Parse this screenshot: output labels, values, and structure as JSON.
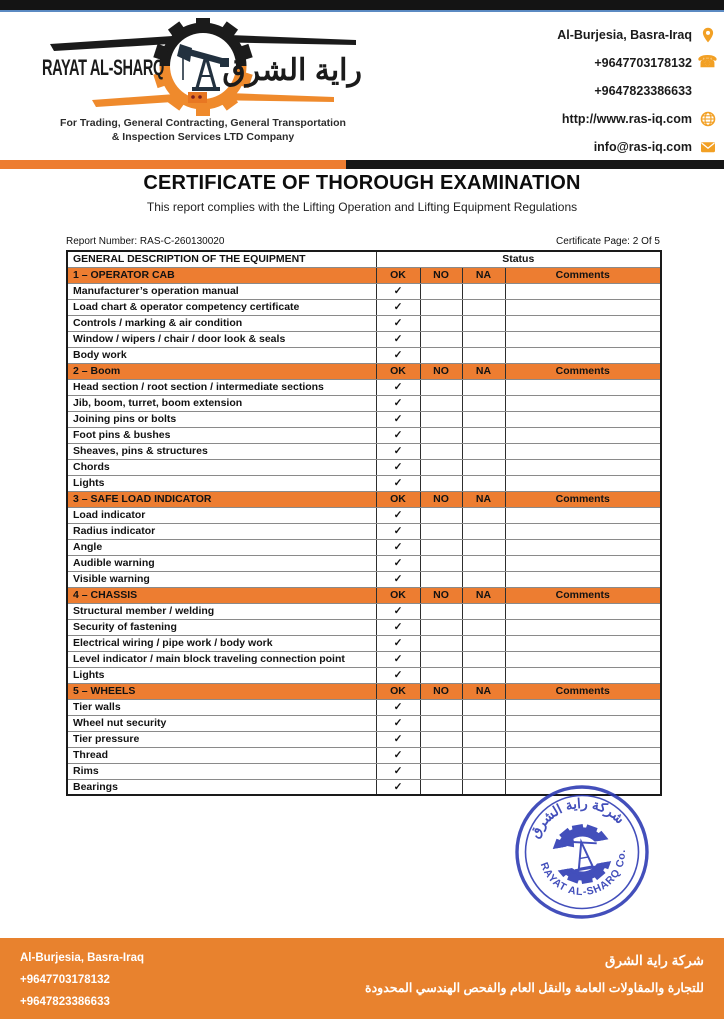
{
  "header": {
    "company_name_en": "RAYAT AL-SHARQ",
    "company_name_ar": "راية الشرق",
    "tagline_line1": "For Trading, General Contracting, General Transportation",
    "tagline_line2": "& Inspection Services LTD Company",
    "contacts": [
      {
        "text": "Al-Burjesia, Basra-Iraq",
        "icon": "location-pin-icon"
      },
      {
        "text": "+9647703178132",
        "icon": "phone-icon"
      },
      {
        "text": "+9647823386633",
        "icon": "none"
      },
      {
        "text": "http://www.ras-iq.com",
        "icon": "globe-icon"
      },
      {
        "text": "info@ras-iq.com",
        "icon": "envelope-icon"
      }
    ]
  },
  "title": "CERTIFICATE OF THOROUGH EXAMINATION",
  "subtitle": "This report complies with the Lifting Operation and Lifting Equipment Regulations",
  "meta": {
    "report_number_label": "Report Number:",
    "report_number": "RAS-C-260130020",
    "certificate_page_label": "Certificate Page:",
    "certificate_page": "2 Of 5"
  },
  "table": {
    "description_header": "GENERAL DESCRIPTION OF THE EQUIPMENT",
    "status_header": "Status",
    "status_columns": [
      "OK",
      "NO",
      "NA",
      "Comments"
    ],
    "check_glyph": "✓",
    "sections": [
      {
        "label": "1 – OPERATOR CAB",
        "items": [
          {
            "text": "Manufacturer’s operation manual",
            "ok": true
          },
          {
            "text": "Load chart & operator competency certificate",
            "ok": true
          },
          {
            "text": "Controls / marking & air condition",
            "ok": true
          },
          {
            "text": "Window / wipers / chair / door look & seals",
            "ok": true
          },
          {
            "text": "Body work",
            "ok": true
          }
        ]
      },
      {
        "label": "2 – Boom",
        "items": [
          {
            "text": "Head section / root section / intermediate sections",
            "ok": true
          },
          {
            "text": "Jib, boom, turret, boom extension",
            "ok": true
          },
          {
            "text": "Joining pins or bolts",
            "ok": true
          },
          {
            "text": "Foot pins & bushes",
            "ok": true
          },
          {
            "text": "Sheaves, pins & structures",
            "ok": true
          },
          {
            "text": "Chords",
            "ok": true
          },
          {
            "text": "Lights",
            "ok": true
          }
        ]
      },
      {
        "label": "3 – SAFE LOAD INDICATOR",
        "items": [
          {
            "text": "Load indicator",
            "ok": true
          },
          {
            "text": "Radius indicator",
            "ok": true
          },
          {
            "text": "Angle",
            "ok": true
          },
          {
            "text": "Audible warning",
            "ok": true
          },
          {
            "text": "Visible warning",
            "ok": true
          }
        ]
      },
      {
        "label": "4 – CHASSIS",
        "items": [
          {
            "text": "Structural member / welding",
            "ok": true
          },
          {
            "text": "Security of fastening",
            "ok": true
          },
          {
            "text": "Electrical wiring / pipe work / body work",
            "ok": true
          },
          {
            "text": "Level indicator / main block traveling connection point",
            "ok": true
          },
          {
            "text": "Lights",
            "ok": true
          }
        ]
      },
      {
        "label": "5 – WHEELS",
        "items": [
          {
            "text": "Tier walls",
            "ok": true
          },
          {
            "text": "Wheel nut security",
            "ok": true
          },
          {
            "text": "Tier pressure",
            "ok": true
          },
          {
            "text": "Thread",
            "ok": true
          },
          {
            "text": "Rims",
            "ok": true
          },
          {
            "text": "Bearings",
            "ok": true
          }
        ]
      }
    ]
  },
  "stamp": {
    "top_text_ar": "شركة راية الشرق",
    "bottom_text": "RAYAT AL-SHARQ Co.",
    "color": "#2F3CB4"
  },
  "footer": {
    "address": "Al-Burjesia, Basra-Iraq",
    "phone1": "+9647703178132",
    "phone2": "+9647823386633",
    "company_ar_line1": "شركة راية الشرق",
    "company_ar_line2": "للتجارة والمقاولات العامة والنقل العام والفحص الهندسي المحدودة"
  },
  "colors": {
    "accent_orange": "#ED7D31",
    "icon_orange": "#F2A024",
    "bar_black": "#141414",
    "stamp_blue": "#2F3CB4",
    "divider_blue": "#5B8AC2"
  }
}
